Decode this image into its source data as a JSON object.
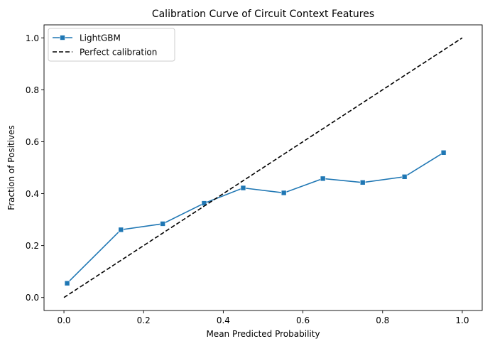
{
  "chart_data": {
    "type": "line",
    "title": "Calibration Curve of Circuit Context Features",
    "xlabel": "Mean Predicted Probability",
    "ylabel": "Fraction of Positives",
    "xlim": [
      -0.05,
      1.05
    ],
    "ylim": [
      -0.05,
      1.05
    ],
    "xticks": [
      0.0,
      0.2,
      0.4,
      0.6,
      0.8,
      1.0
    ],
    "xtick_labels": [
      "0.0",
      "0.2",
      "0.4",
      "0.6",
      "0.8",
      "1.0"
    ],
    "yticks": [
      0.0,
      0.2,
      0.4,
      0.6,
      0.8,
      1.0
    ],
    "ytick_labels": [
      "0.0",
      "0.2",
      "0.4",
      "0.6",
      "0.8",
      "1.0"
    ],
    "grid": false,
    "legend_position": "upper left",
    "series": [
      {
        "name": "LightGBM",
        "color": "#1f77b4",
        "marker": "square",
        "line_style": "solid",
        "x": [
          0.008,
          0.143,
          0.248,
          0.352,
          0.45,
          0.552,
          0.65,
          0.75,
          0.855,
          0.953
        ],
        "y": [
          0.055,
          0.261,
          0.284,
          0.363,
          0.422,
          0.403,
          0.458,
          0.443,
          0.465,
          0.558
        ]
      },
      {
        "name": "Perfect calibration",
        "color": "#000000",
        "marker": "none",
        "line_style": "dashed",
        "x": [
          0.0,
          1.0
        ],
        "y": [
          0.0,
          1.0
        ]
      }
    ]
  }
}
